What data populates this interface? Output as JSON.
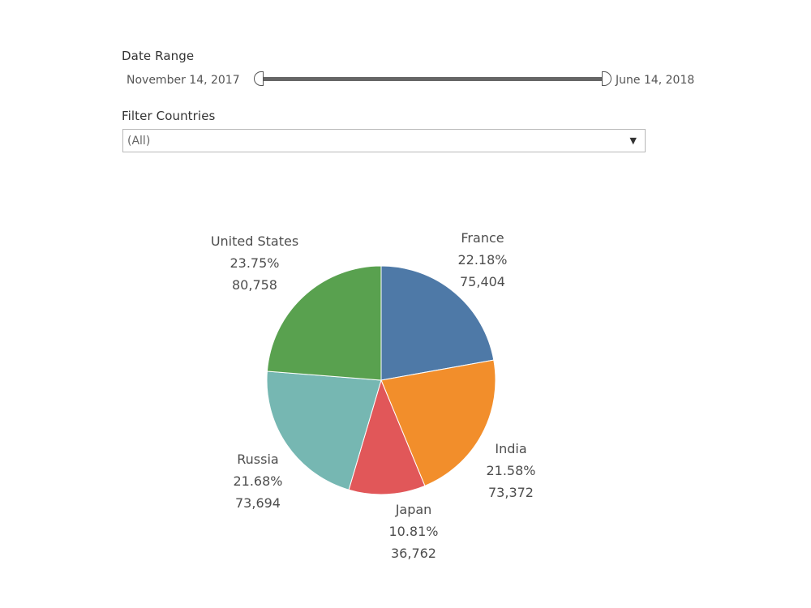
{
  "filters": {
    "date_range": {
      "title": "Date Range",
      "start_label": "November 14, 2017",
      "end_label": "June 14, 2018"
    },
    "countries": {
      "title": "Filter Countries",
      "selected": "(All)"
    }
  },
  "chart_data": {
    "type": "pie",
    "start_angle_deg": 0,
    "direction": "clockwise",
    "slices": [
      {
        "label": "France",
        "percent_label": "22.18%",
        "value_label": "75,404",
        "value": 75404,
        "color": "#4e79a7"
      },
      {
        "label": "India",
        "percent_label": "21.58%",
        "value_label": "73,372",
        "value": 73372,
        "color": "#f28e2b"
      },
      {
        "label": "Japan",
        "percent_label": "10.81%",
        "value_label": "36,762",
        "value": 36762,
        "color": "#e15759"
      },
      {
        "label": "Russia",
        "percent_label": "21.68%",
        "value_label": "73,694",
        "value": 73694,
        "color": "#76b7b2"
      },
      {
        "label": "United States",
        "percent_label": "23.75%",
        "value_label": "80,758",
        "value": 80758,
        "color": "#59a14f"
      }
    ]
  }
}
